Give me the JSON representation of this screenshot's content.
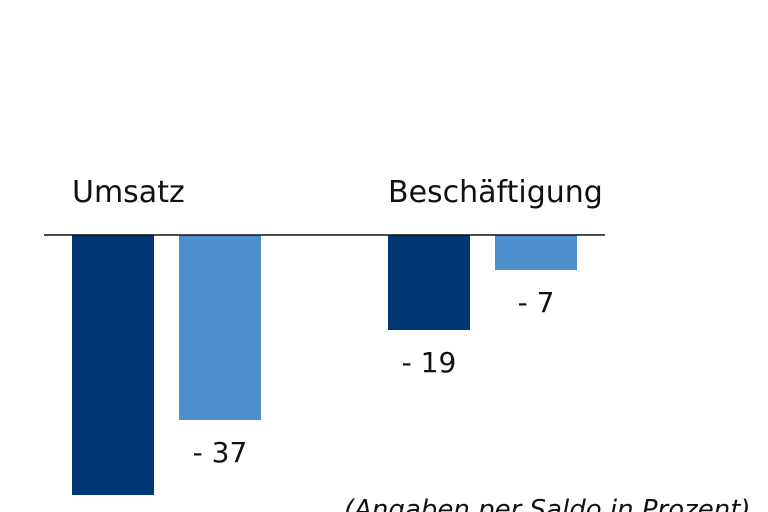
{
  "chart_data": {
    "type": "bar",
    "categories": [
      "Umsatz",
      "Beschäftigung"
    ],
    "series": [
      {
        "values": [
          -52,
          -19
        ],
        "value_labels": [
          "",
          "- 19"
        ]
      },
      {
        "values": [
          -37,
          -7
        ],
        "value_labels": [
          "- 37",
          "- 7"
        ]
      }
    ],
    "colors": [
      "#003876",
      "#4e8fcd"
    ],
    "ylim": [
      -53,
      0
    ],
    "grid": false,
    "note": "(Angaben per Saldo in Prozent)"
  }
}
